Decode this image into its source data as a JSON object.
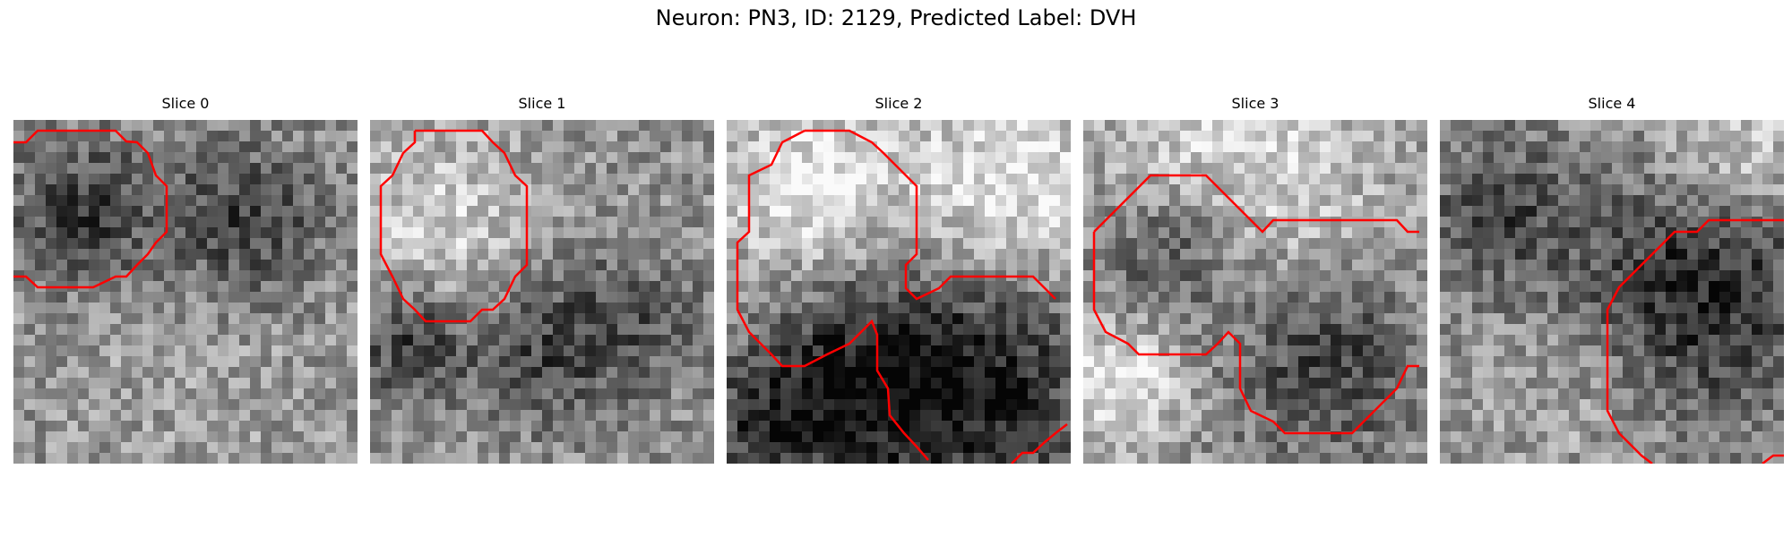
{
  "figure": {
    "title": "Neuron: PN3, ID: 2129, Predicted Label: DVH"
  },
  "colors": {
    "contour": "#ff0000",
    "background": "#ffffff"
  },
  "panels": [
    {
      "label": "Slice 0",
      "image": "grayscale-em-patch",
      "dark_regions": [
        "upper-left",
        "upper-right"
      ]
    },
    {
      "label": "Slice 1",
      "image": "grayscale-em-patch",
      "dark_regions": [
        "lower-left",
        "lower-right"
      ]
    },
    {
      "label": "Slice 2",
      "image": "grayscale-em-patch",
      "dark_regions": [
        "lower-center",
        "lower-right"
      ]
    },
    {
      "label": "Slice 3",
      "image": "grayscale-em-patch",
      "dark_regions": [
        "center-left",
        "lower-right"
      ]
    },
    {
      "label": "Slice 4",
      "image": "grayscale-em-patch",
      "dark_regions": [
        "upper-left",
        "center-right"
      ]
    }
  ]
}
